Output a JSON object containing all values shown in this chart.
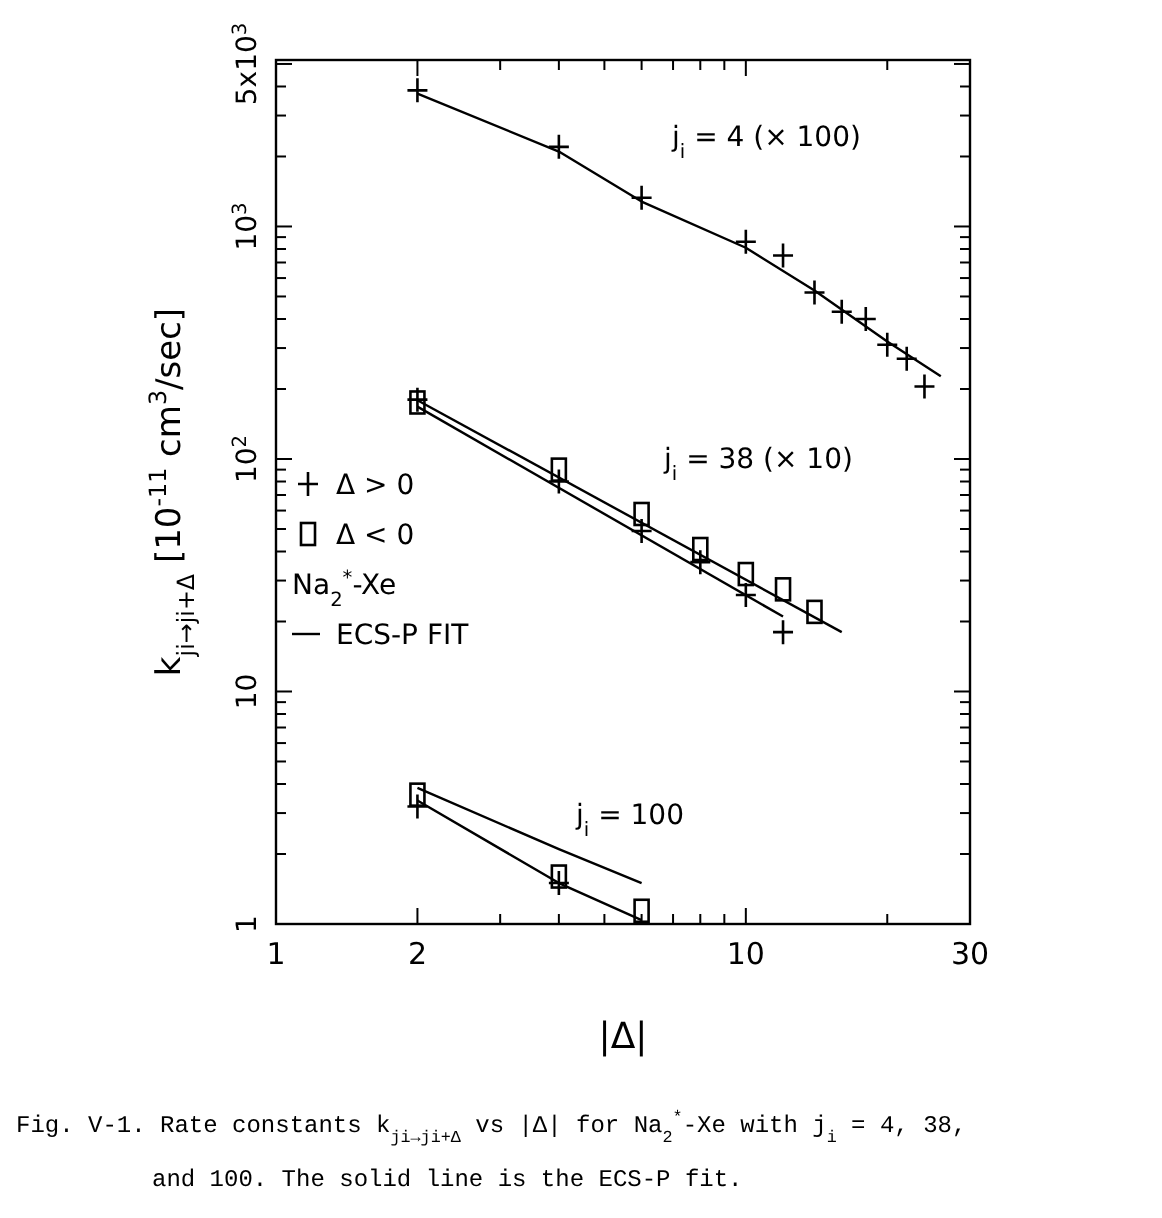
{
  "chart_data": {
    "type": "scatter",
    "log": "xy",
    "xlabel": "|Δ|",
    "ylabel": "k$_{ji→ji+Δ}$  [10$^{-11}$ cm$^{3}$/sec]",
    "legend": "left",
    "legend_title": "Na$_{2}$$^{*}$-Xe",
    "xlim": [
      1,
      30
    ],
    "ylim": [
      1,
      5200
    ],
    "xticks": [
      1,
      2,
      {
        "value": 3,
        "label": null
      },
      {
        "value": 4,
        "label": null
      },
      {
        "value": 5,
        "label": null
      },
      {
        "value": 6,
        "label": null
      },
      {
        "value": 7,
        "label": null
      },
      {
        "value": 8,
        "label": null
      },
      {
        "value": 9,
        "label": null
      },
      10,
      {
        "value": 20,
        "label": null
      },
      30
    ],
    "yticks": [
      1,
      {
        "value": 2,
        "label": null
      },
      {
        "value": 3,
        "label": null
      },
      {
        "value": 4,
        "label": null
      },
      {
        "value": 5,
        "label": null
      },
      {
        "value": 6,
        "label": null
      },
      {
        "value": 7,
        "label": null
      },
      {
        "value": 8,
        "label": null
      },
      {
        "value": 9,
        "label": null
      },
      10,
      {
        "value": 20,
        "label": null
      },
      {
        "value": 30,
        "label": null
      },
      {
        "value": 40,
        "label": null
      },
      {
        "value": 50,
        "label": null
      },
      {
        "value": 60,
        "label": null
      },
      {
        "value": 70,
        "label": null
      },
      {
        "value": 80,
        "label": null
      },
      {
        "value": 90,
        "label": null
      },
      {
        "value": 100,
        "label": "10$^{2}$"
      },
      {
        "value": 200,
        "label": null
      },
      {
        "value": 300,
        "label": null
      },
      {
        "value": 400,
        "label": null
      },
      {
        "value": 500,
        "label": null
      },
      {
        "value": 600,
        "label": null
      },
      {
        "value": 700,
        "label": null
      },
      {
        "value": 800,
        "label": null
      },
      {
        "value": 900,
        "label": null
      },
      {
        "value": 1000,
        "label": "10$^{3}$"
      },
      {
        "value": 2000,
        "label": null
      },
      {
        "value": 3000,
        "label": null
      },
      {
        "value": 4000,
        "label": null
      },
      {
        "value": 5000,
        "label": "5x10$^{3}$"
      }
    ],
    "series": [
      {
        "name": "Δ > 0",
        "marker": "cross",
        "color": "#000000",
        "x": [
          2,
          4,
          6,
          10,
          12,
          14,
          16,
          18,
          20,
          22,
          24
        ],
        "values": [
          3850,
          2200,
          1330,
          860,
          750,
          520,
          430,
          400,
          310,
          270,
          205
        ]
      },
      {
        "name": "ECS-P FIT",
        "type": "line",
        "color": "#000000",
        "x": [
          2,
          4,
          6,
          10,
          14,
          20,
          26
        ],
        "values": [
          3730,
          2100,
          1280,
          810,
          530,
          320,
          227
        ]
      },
      {
        "name": "Δ < 0",
        "marker": "square",
        "color": "#000000",
        "x": [
          2,
          4,
          6,
          8,
          10,
          12,
          14
        ],
        "values": [
          175,
          90,
          58,
          41,
          32,
          27.5,
          22
        ]
      },
      {
        "marker": "cross",
        "color": "#000000",
        "x": [
          2,
          4,
          6,
          8,
          10,
          12
        ],
        "values": [
          180,
          80,
          49,
          36,
          26,
          18
        ]
      },
      {
        "type": "line",
        "color": "#000000",
        "x": [
          2,
          16
        ],
        "values": [
          179,
          18
        ]
      },
      {
        "type": "line",
        "color": "#000000",
        "x": [
          2,
          12
        ],
        "values": [
          168,
          21
        ]
      },
      {
        "marker": "square",
        "color": "#000000",
        "x": [
          2,
          4,
          6
        ],
        "values": [
          3.6,
          1.6,
          1.14
        ]
      },
      {
        "marker": "cross",
        "color": "#000000",
        "x": [
          2,
          4
        ],
        "values": [
          3.2,
          1.5
        ]
      },
      {
        "type": "line",
        "color": "#000000",
        "x": [
          2,
          4,
          6
        ],
        "values": [
          3.85,
          2.1,
          1.5
        ]
      },
      {
        "type": "line",
        "color": "#000000",
        "x": [
          2,
          4,
          6
        ],
        "values": [
          3.4,
          1.5,
          1.04
        ]
      }
    ],
    "annotations": [
      "j$_{i}$ = 4  (× 100)",
      "j$_{i}$ = 38  (× 10)",
      "j$_{i}$ = 100",
      "Fig. V-1.  Rate constants k$_{ji→ji+Δ}$ vs |Δ| for Na$_{2}$$^{*}$-Xe with j$_{i}$ = 4, 38,",
      "and 100.  The solid line is the ECS-P fit."
    ]
  }
}
